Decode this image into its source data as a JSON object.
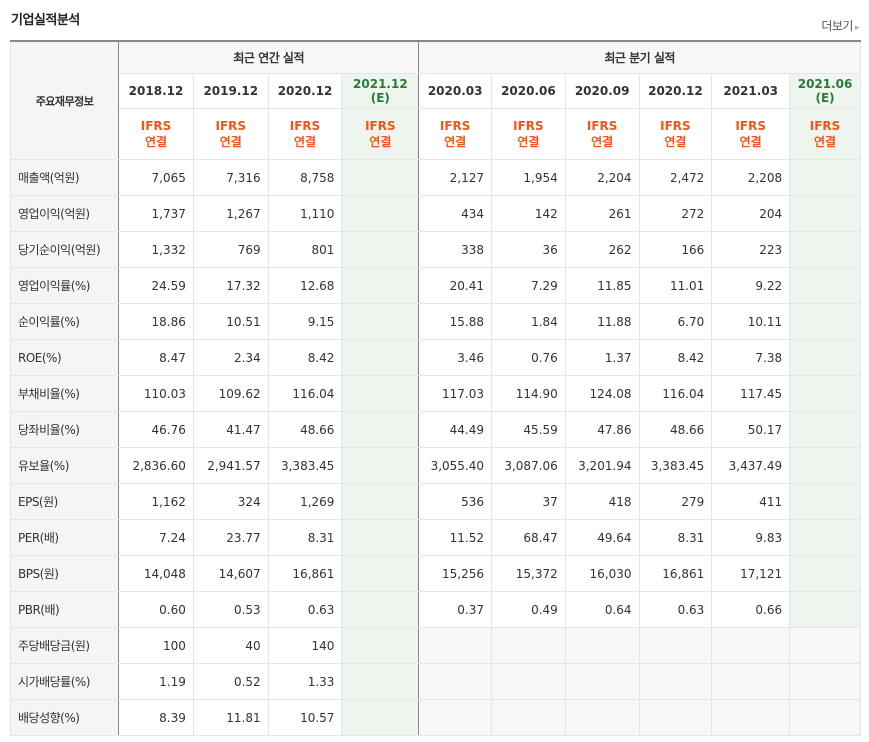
{
  "section_title": "기업실적분석",
  "more_label": "더보기",
  "header": {
    "row_label": "주요재무정보",
    "annual_group": "최근 연간 실적",
    "quarterly_group": "최근 분기 실적",
    "annual_periods": [
      "2018.12",
      "2019.12",
      "2020.12"
    ],
    "annual_estimate": {
      "period": "2021.12",
      "tag": "(E)"
    },
    "quarterly_periods": [
      "2020.03",
      "2020.06",
      "2020.09",
      "2020.12",
      "2021.03"
    ],
    "quarterly_estimate": {
      "period": "2021.06",
      "tag": "(E)"
    },
    "ifrs_line1": "IFRS",
    "ifrs_line2": "연결"
  },
  "rows": [
    {
      "label": "매출액(억원)",
      "annual": [
        "7,065",
        "7,316",
        "8,758"
      ],
      "quarterly": [
        "2,127",
        "1,954",
        "2,204",
        "2,472",
        "2,208"
      ]
    },
    {
      "label": "영업이익(억원)",
      "annual": [
        "1,737",
        "1,267",
        "1,110"
      ],
      "quarterly": [
        "434",
        "142",
        "261",
        "272",
        "204"
      ]
    },
    {
      "label": "당기순이익(억원)",
      "annual": [
        "1,332",
        "769",
        "801"
      ],
      "quarterly": [
        "338",
        "36",
        "262",
        "166",
        "223"
      ]
    },
    {
      "label": "영업이익률(%)",
      "annual": [
        "24.59",
        "17.32",
        "12.68"
      ],
      "quarterly": [
        "20.41",
        "7.29",
        "11.85",
        "11.01",
        "9.22"
      ]
    },
    {
      "label": "순이익률(%)",
      "annual": [
        "18.86",
        "10.51",
        "9.15"
      ],
      "quarterly": [
        "15.88",
        "1.84",
        "11.88",
        "6.70",
        "10.11"
      ]
    },
    {
      "label": "ROE(%)",
      "annual": [
        "8.47",
        "2.34",
        "8.42"
      ],
      "quarterly": [
        "3.46",
        "0.76",
        "1.37",
        "8.42",
        "7.38"
      ]
    },
    {
      "label": "부채비율(%)",
      "annual": [
        "110.03",
        "109.62",
        "116.04"
      ],
      "quarterly": [
        "117.03",
        "114.90",
        "124.08",
        "116.04",
        "117.45"
      ]
    },
    {
      "label": "당좌비율(%)",
      "annual": [
        "46.76",
        "41.47",
        "48.66"
      ],
      "quarterly": [
        "44.49",
        "45.59",
        "47.86",
        "48.66",
        "50.17"
      ]
    },
    {
      "label": "유보율(%)",
      "annual": [
        "2,836.60",
        "2,941.57",
        "3,383.45"
      ],
      "quarterly": [
        "3,055.40",
        "3,087.06",
        "3,201.94",
        "3,383.45",
        "3,437.49"
      ]
    },
    {
      "label": "EPS(원)",
      "annual": [
        "1,162",
        "324",
        "1,269"
      ],
      "quarterly": [
        "536",
        "37",
        "418",
        "279",
        "411"
      ]
    },
    {
      "label": "PER(배)",
      "annual": [
        "7.24",
        "23.77",
        "8.31"
      ],
      "quarterly": [
        "11.52",
        "68.47",
        "49.64",
        "8.31",
        "9.83"
      ]
    },
    {
      "label": "BPS(원)",
      "annual": [
        "14,048",
        "14,607",
        "16,861"
      ],
      "quarterly": [
        "15,256",
        "15,372",
        "16,030",
        "16,861",
        "17,121"
      ]
    },
    {
      "label": "PBR(배)",
      "annual": [
        "0.60",
        "0.53",
        "0.63"
      ],
      "quarterly": [
        "0.37",
        "0.49",
        "0.64",
        "0.63",
        "0.66"
      ]
    },
    {
      "label": "주당배당금(원)",
      "annual": [
        "100",
        "40",
        "140"
      ],
      "quarterly": [
        "",
        "",
        "",
        "",
        ""
      ]
    },
    {
      "label": "시가배당률(%)",
      "annual": [
        "1.19",
        "0.52",
        "1.33"
      ],
      "quarterly": [
        "",
        "",
        "",
        "",
        ""
      ]
    },
    {
      "label": "배당성향(%)",
      "annual": [
        "8.39",
        "11.81",
        "10.57"
      ],
      "quarterly": [
        "",
        "",
        "",
        "",
        ""
      ]
    }
  ]
}
